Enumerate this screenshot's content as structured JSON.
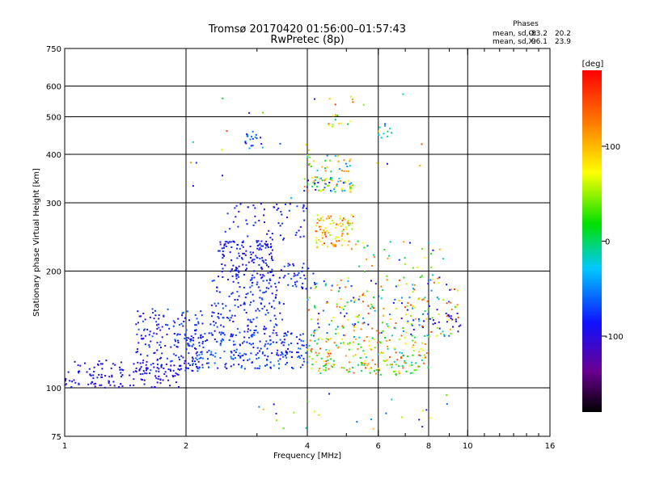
{
  "chart_data": {
    "type": "scatter",
    "title": "Tromsø 20170420 01:56:00–01:57:43",
    "subtitle": "RwPretec (8p)",
    "xlabel": "Frequency [MHz]",
    "ylabel": "Stationary phase Virtual Height [km]",
    "x_scale": "log",
    "y_scale": "log",
    "xlim": [
      1,
      16
    ],
    "ylim": [
      75,
      750
    ],
    "x_ticks": [
      1,
      2,
      4,
      6,
      8,
      10,
      16
    ],
    "x_minor_ticks": [
      3,
      5,
      7,
      9,
      11,
      12,
      13,
      14,
      15
    ],
    "y_ticks": [
      75,
      100,
      200,
      300,
      400,
      500,
      600,
      750
    ],
    "x_gridlines": [
      2,
      4,
      6,
      8,
      10
    ],
    "y_gridlines": [
      100,
      200,
      300,
      400,
      500,
      600
    ],
    "grid": true,
    "stats": {
      "heading": "Phases",
      "o_label": "mean, sd,O:",
      "o_mean": -83.2,
      "o_sd": 20.2,
      "x_label": "mean, sd,X:",
      "x_mean": 96.1,
      "x_sd": 23.9
    },
    "colorbar": {
      "label": "[deg]",
      "colormap": "rainbow",
      "range": [
        -180,
        180
      ],
      "ticks": [
        100,
        0,
        -100
      ]
    },
    "clusters": [
      {
        "f": [
          1.0,
          1.95
        ],
        "h": [
          100,
          118
        ],
        "phase": [
          -110,
          -80
        ],
        "n": 150
      },
      {
        "f": [
          1.5,
          2.2
        ],
        "h": [
          110,
          160
        ],
        "phase": [
          -110,
          -60
        ],
        "n": 160
      },
      {
        "f": [
          2.0,
          4.0
        ],
        "h": [
          112,
          140
        ],
        "phase": [
          -100,
          -50
        ],
        "n": 260
      },
      {
        "f": [
          2.3,
          3.5
        ],
        "h": [
          140,
          190
        ],
        "phase": [
          -100,
          -60
        ],
        "n": 140
      },
      {
        "f": [
          2.4,
          3.3
        ],
        "h": [
          190,
          240
        ],
        "phase": [
          -110,
          -70
        ],
        "n": 150
      },
      {
        "f": [
          2.5,
          4.0
        ],
        "h": [
          240,
          300
        ],
        "phase": [
          -100,
          -70
        ],
        "n": 60
      },
      {
        "f": [
          3.4,
          4.2
        ],
        "h": [
          180,
          210
        ],
        "phase": [
          -100,
          -60
        ],
        "n": 40
      },
      {
        "f": [
          4.0,
          8.0
        ],
        "h": [
          108,
          135
        ],
        "phase": [
          -30,
          150
        ],
        "n": 200
      },
      {
        "f": [
          4.0,
          9.5
        ],
        "h": [
          135,
          190
        ],
        "phase": [
          -110,
          160
        ],
        "n": 220
      },
      {
        "f": [
          4.2,
          5.2
        ],
        "h": [
          230,
          280
        ],
        "phase": [
          40,
          160
        ],
        "n": 90
      },
      {
        "f": [
          3.9,
          5.2
        ],
        "h": [
          320,
          350
        ],
        "phase": [
          -120,
          150
        ],
        "n": 70
      },
      {
        "f": [
          4.0,
          5.2
        ],
        "h": [
          360,
          400
        ],
        "phase": [
          -60,
          150
        ],
        "n": 30
      },
      {
        "f": [
          2.8,
          3.1
        ],
        "h": [
          410,
          460
        ],
        "phase": [
          -100,
          -40
        ],
        "n": 20
      },
      {
        "f": [
          4.5,
          5.2
        ],
        "h": [
          450,
          560
        ],
        "phase": [
          0,
          160
        ],
        "n": 15
      },
      {
        "f": [
          5.0,
          9.0
        ],
        "h": [
          190,
          240
        ],
        "phase": [
          -100,
          130
        ],
        "n": 40
      },
      {
        "f": [
          6.0,
          6.5
        ],
        "h": [
          440,
          480
        ],
        "phase": [
          -50,
          0
        ],
        "n": 10
      },
      {
        "f": [
          8.0,
          10.0
        ],
        "h": [
          140,
          160
        ],
        "phase": [
          -110,
          -90
        ],
        "n": 20
      },
      {
        "f": [
          3.0,
          9.0
        ],
        "h": [
          78,
          98
        ],
        "phase": [
          -110,
          100
        ],
        "n": 25
      },
      {
        "f": [
          2.0,
          8.0
        ],
        "h": [
          300,
          600
        ],
        "phase": [
          -110,
          150
        ],
        "n": 25
      }
    ]
  }
}
